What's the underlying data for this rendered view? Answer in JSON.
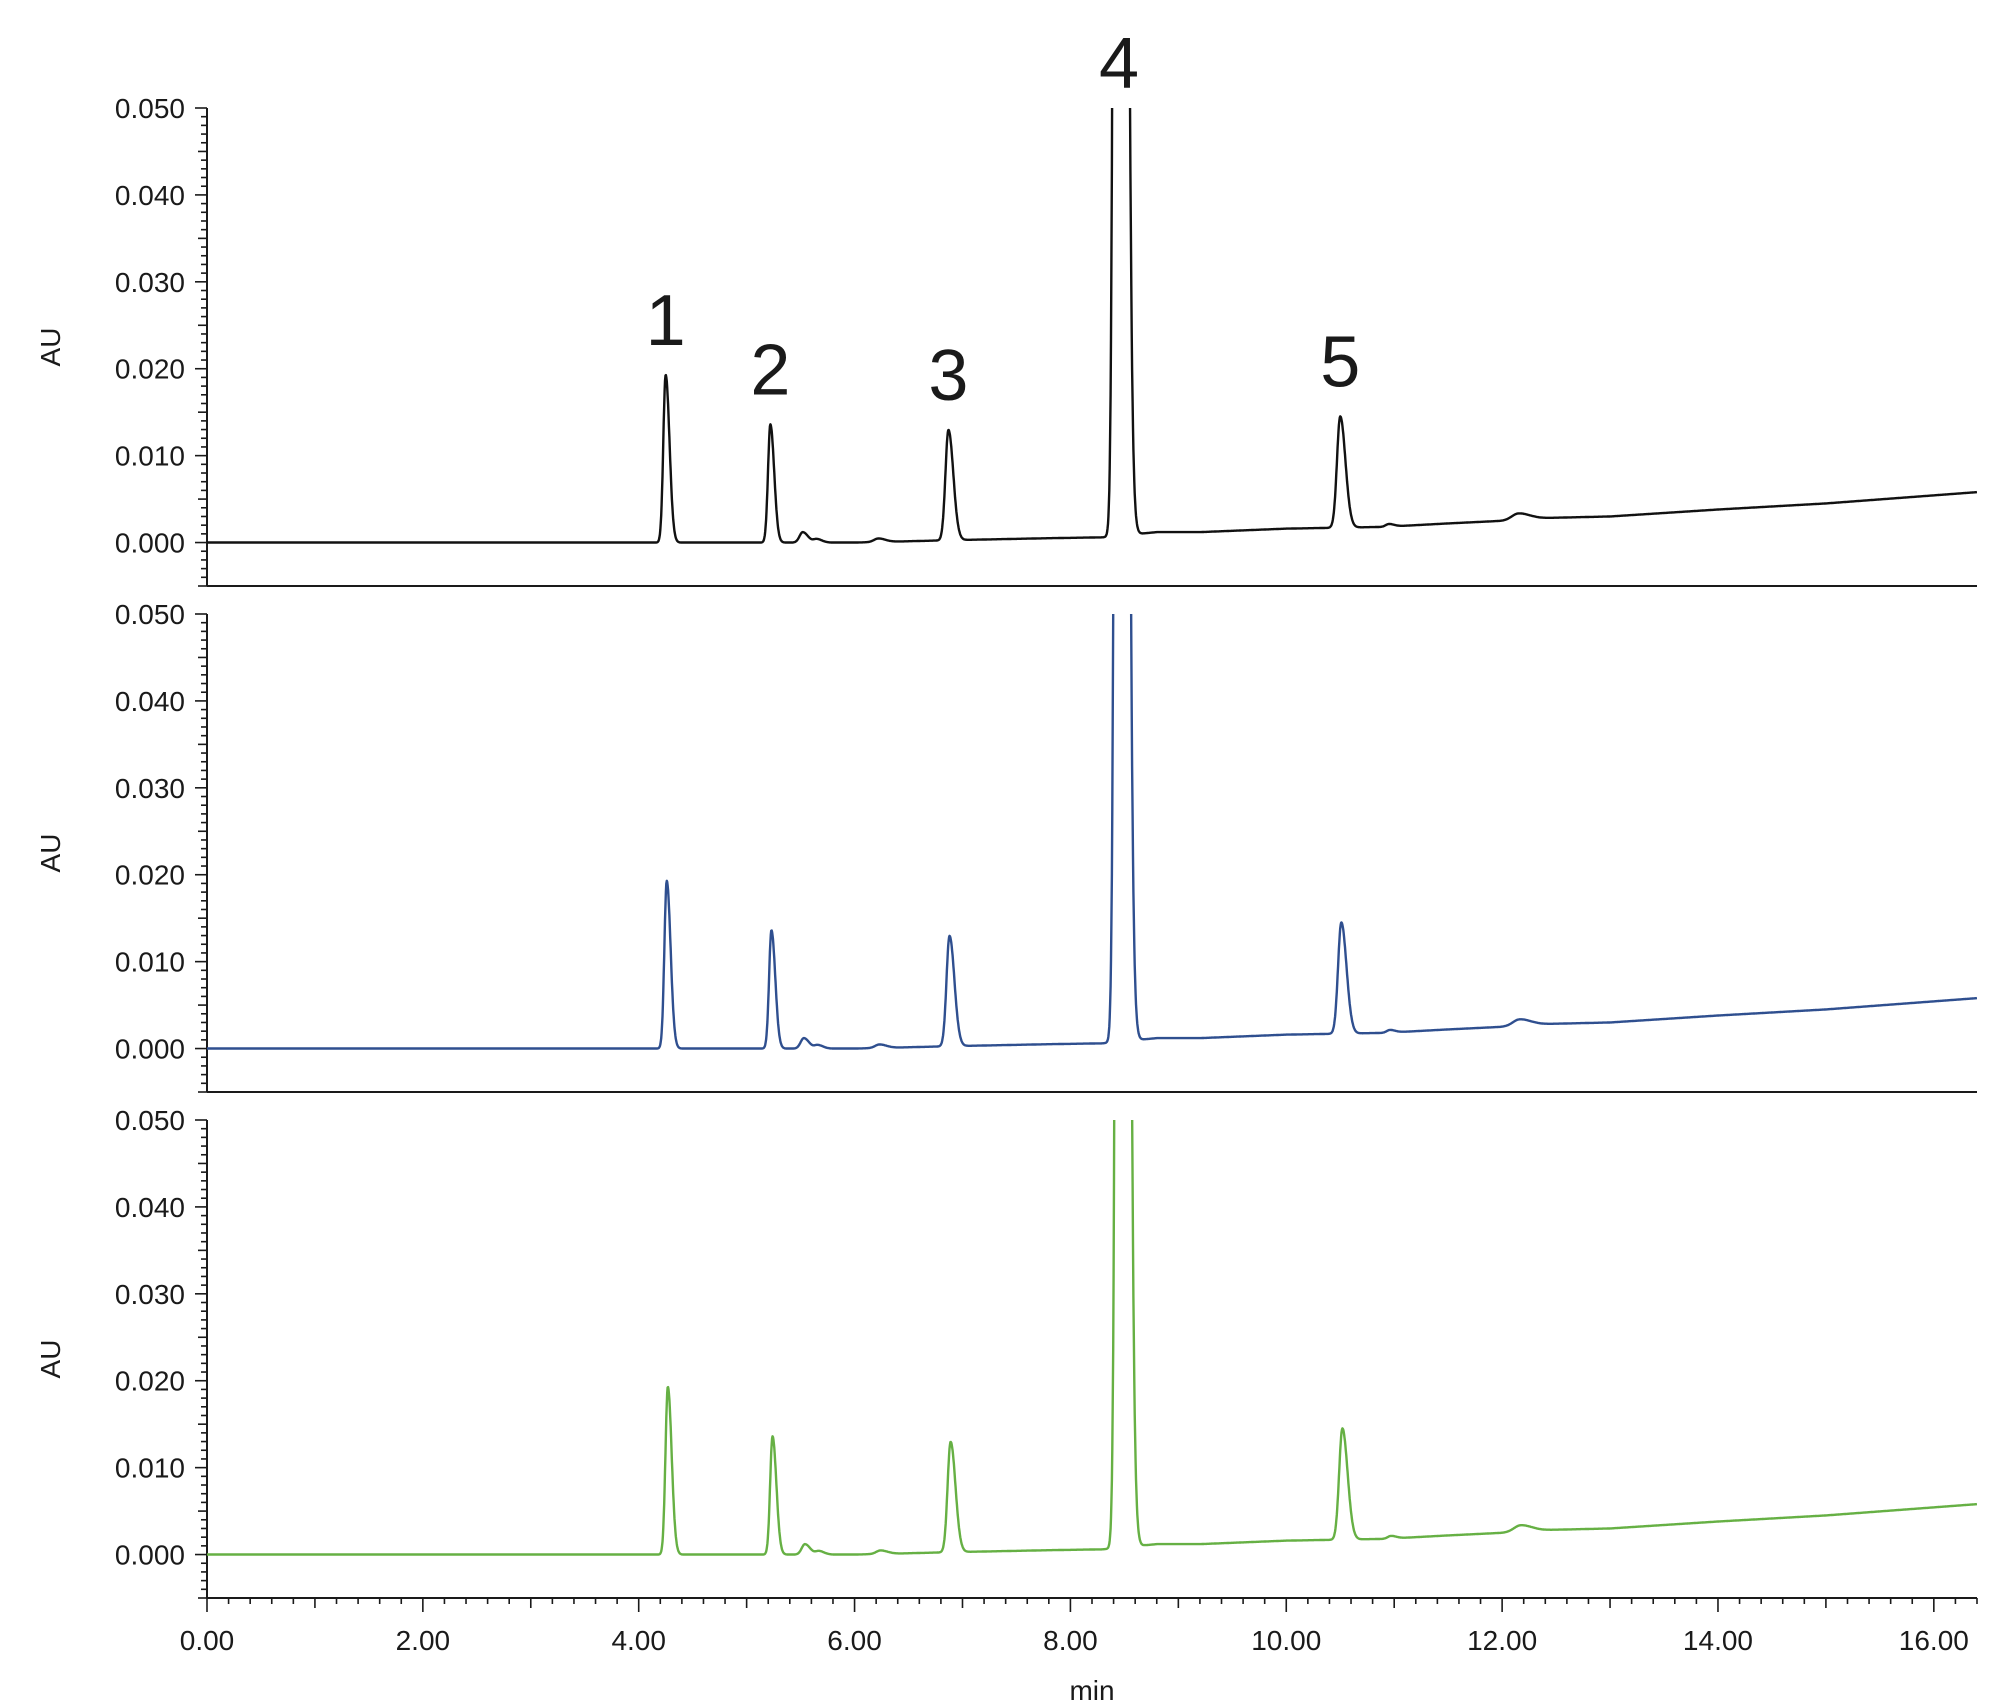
{
  "chart_data": {
    "type": "line",
    "xlabel": "min",
    "ylabel": "AU",
    "xlim": [
      0,
      16.4
    ],
    "ylim": [
      -0.005,
      0.05
    ],
    "x_ticks": [
      "0.00",
      "2.00",
      "4.00",
      "6.00",
      "8.00",
      "10.00",
      "12.00",
      "14.00",
      "16.00"
    ],
    "y_ticks": [
      "0.000",
      "0.010",
      "0.020",
      "0.030",
      "0.040",
      "0.050"
    ],
    "grid": false,
    "peak_labels": [
      {
        "label": "1",
        "x": 4.25
      },
      {
        "label": "2",
        "x": 5.22
      },
      {
        "label": "3",
        "x": 6.87
      },
      {
        "label": "4",
        "x": 8.45
      },
      {
        "label": "5",
        "x": 10.5
      }
    ],
    "panels": [
      {
        "color": "#111111",
        "show_peak_labels": true,
        "x_shift": 0.0
      },
      {
        "color": "#2f4f8f",
        "show_peak_labels": false,
        "x_shift": 0.01
      },
      {
        "color": "#66b044",
        "show_peak_labels": false,
        "x_shift": 0.02
      }
    ],
    "peaks": [
      {
        "x": 4.25,
        "height": 0.0193,
        "width": 0.022
      },
      {
        "x": 5.22,
        "height": 0.0136,
        "width": 0.022
      },
      {
        "x": 5.52,
        "height": 0.0012,
        "width": 0.03
      },
      {
        "x": 5.65,
        "height": 0.0004,
        "width": 0.03
      },
      {
        "x": 6.22,
        "height": 0.0004,
        "width": 0.04
      },
      {
        "x": 6.87,
        "height": 0.0127,
        "width": 0.028
      },
      {
        "x": 8.45,
        "height": 0.48,
        "width": 0.03
      },
      {
        "x": 10.5,
        "height": 0.0128,
        "width": 0.03
      },
      {
        "x": 10.95,
        "height": 0.0003,
        "width": 0.03
      },
      {
        "x": 12.15,
        "height": 0.0007,
        "width": 0.06
      }
    ],
    "baseline": [
      [
        0,
        0.0
      ],
      [
        2.3,
        0.0
      ],
      [
        4.1,
        0.0
      ],
      [
        5.0,
        0.0
      ],
      [
        6.0,
        0.0
      ],
      [
        7.0,
        0.0003
      ],
      [
        7.8,
        0.0005
      ],
      [
        8.3,
        0.0006
      ],
      [
        8.8,
        0.0012
      ],
      [
        9.2,
        0.0012
      ],
      [
        10.0,
        0.0016
      ],
      [
        10.9,
        0.0018
      ],
      [
        11.5,
        0.0022
      ],
      [
        12.0,
        0.0025
      ],
      [
        12.3,
        0.0028
      ],
      [
        13.0,
        0.003
      ],
      [
        14.0,
        0.0038
      ],
      [
        15.0,
        0.0045
      ],
      [
        16.4,
        0.0058
      ]
    ]
  }
}
